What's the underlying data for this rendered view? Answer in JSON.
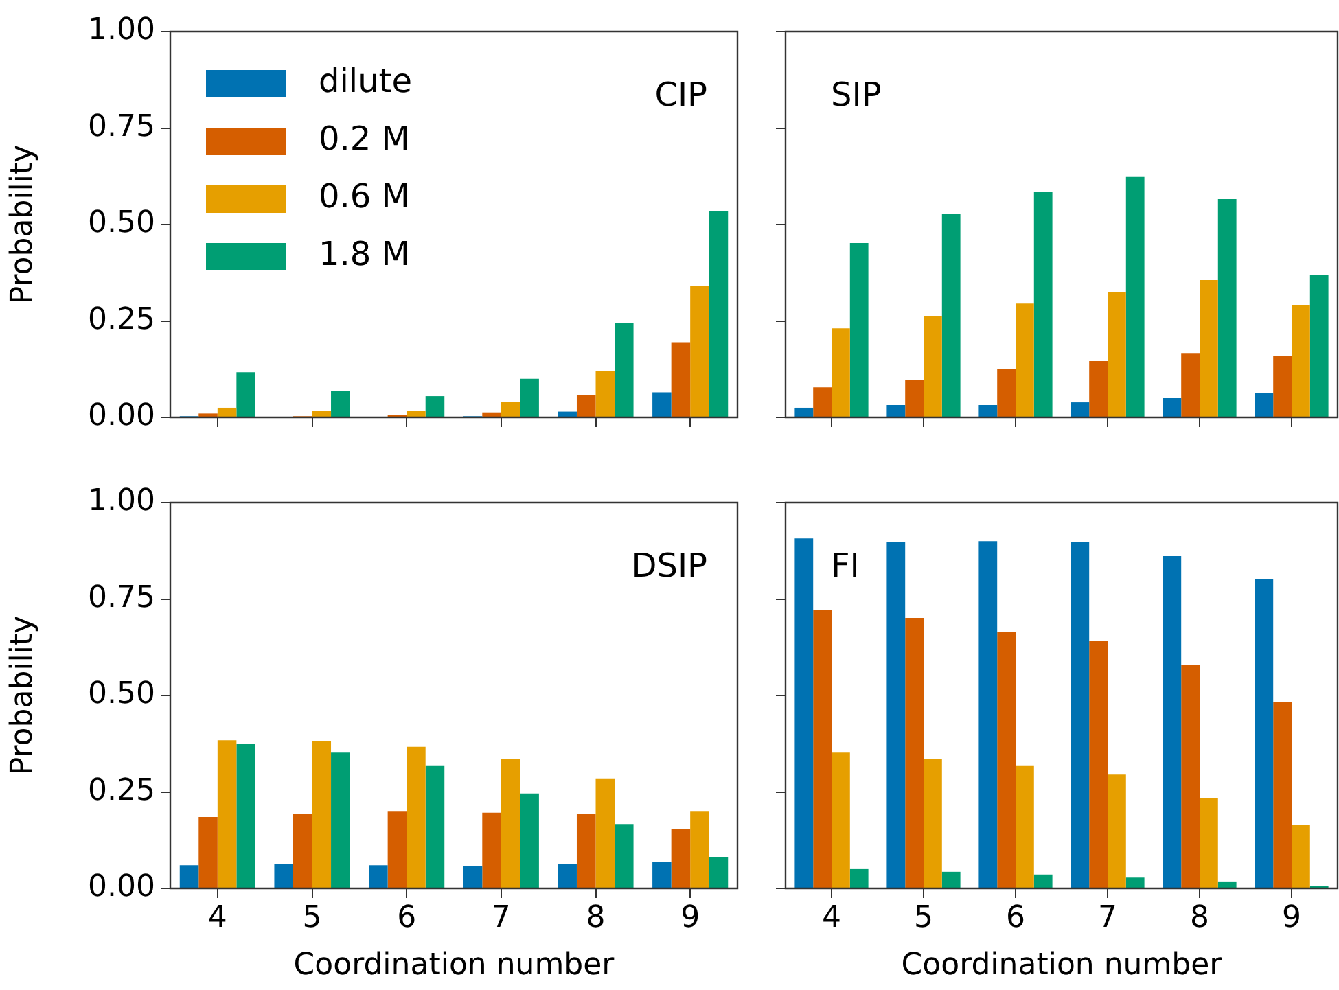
{
  "chart_data": [
    {
      "type": "bar",
      "ylabel": "Probability",
      "annotations": [
        "CIP"
      ],
      "legend": "top left",
      "tick_labels": "y",
      "categories": [
        "4",
        "5",
        "6",
        "7",
        "8",
        "9"
      ],
      "ylim": [
        0,
        1
      ],
      "yticks": [
        {
          "value": 0,
          "label": "0.00"
        },
        {
          "value": 0.25,
          "label": "0.25"
        },
        {
          "value": 0.5,
          "label": "0.50"
        },
        {
          "value": 0.75,
          "label": "0.75"
        },
        {
          "value": 1,
          "label": "1.00"
        }
      ],
      "series": [
        {
          "name": "dilute",
          "color": "#0072b2",
          "values": [
            0.003,
            null,
            0.001,
            0.003,
            0.015,
            0.065
          ]
        },
        {
          "name": "0.2 M",
          "color": "#d55e00",
          "values": [
            0.01,
            0.003,
            0.006,
            0.013,
            0.058,
            0.195
          ]
        },
        {
          "name": "0.6 M",
          "color": "#e69f00",
          "values": [
            0.025,
            0.017,
            0.017,
            0.04,
            0.12,
            0.34
          ]
        },
        {
          "name": "1.8 M",
          "color": "#009e73",
          "values": [
            0.117,
            0.068,
            0.055,
            0.1,
            0.245,
            0.535
          ]
        }
      ]
    },
    {
      "type": "bar",
      "annotations": [
        "SIP"
      ],
      "tick_labels": false,
      "categories": [
        "4",
        "5",
        "6",
        "7",
        "8",
        "9"
      ],
      "ylim": [
        0,
        1
      ],
      "yticks": [
        {
          "value": 0,
          "label": null
        },
        {
          "value": 0.25,
          "label": null
        },
        {
          "value": 0.5,
          "label": null
        },
        {
          "value": 0.75,
          "label": null
        },
        {
          "value": 1,
          "label": null
        }
      ],
      "series": [
        {
          "color": "#0072b2",
          "values": [
            0.025,
            0.032,
            0.032,
            0.039,
            0.05,
            0.064
          ]
        },
        {
          "color": "#d55e00",
          "values": [
            0.078,
            0.096,
            0.125,
            0.146,
            0.167,
            0.16
          ]
        },
        {
          "color": "#e69f00",
          "values": [
            0.231,
            0.263,
            0.295,
            0.324,
            0.356,
            0.292
          ]
        },
        {
          "color": "#009e73",
          "values": [
            0.452,
            0.527,
            0.584,
            0.623,
            0.566,
            0.37
          ]
        }
      ]
    },
    {
      "type": "bar",
      "xlabel": "Coordination number",
      "ylabel": "Probability",
      "annotations": [
        "DSIP"
      ],
      "categories": [
        "4",
        "5",
        "6",
        "7",
        "8",
        "9"
      ],
      "ylim": [
        0,
        1
      ],
      "yticks": [
        {
          "value": 0,
          "label": "0.00"
        },
        {
          "value": 0.25,
          "label": "0.25"
        },
        {
          "value": 0.5,
          "label": "0.50"
        },
        {
          "value": 0.75,
          "label": "0.75"
        },
        {
          "value": 1,
          "label": "1.00"
        }
      ],
      "series": [
        {
          "color": "#0072b2",
          "values": [
            0.06,
            0.064,
            0.06,
            0.057,
            0.064,
            0.068
          ]
        },
        {
          "color": "#d55e00",
          "values": [
            0.185,
            0.192,
            0.199,
            0.196,
            0.192,
            0.153
          ]
        },
        {
          "color": "#e69f00",
          "values": [
            0.384,
            0.381,
            0.367,
            0.335,
            0.285,
            0.199
          ]
        },
        {
          "color": "#009e73",
          "values": [
            0.374,
            0.352,
            0.317,
            0.246,
            0.167,
            0.082
          ]
        }
      ]
    },
    {
      "type": "bar",
      "xlabel": "Coordination number",
      "annotations": [
        "FI"
      ],
      "tick_labels": "x",
      "categories": [
        "4",
        "5",
        "6",
        "7",
        "8",
        "9"
      ],
      "ylim": [
        0,
        1
      ],
      "yticks": [
        {
          "value": 0,
          "label": null
        },
        {
          "value": 0.25,
          "label": null
        },
        {
          "value": 0.5,
          "label": null
        },
        {
          "value": 0.75,
          "label": null
        },
        {
          "value": 1,
          "label": null
        }
      ],
      "series": [
        {
          "color": "#0072b2",
          "values": [
            0.907,
            0.897,
            0.9,
            0.897,
            0.861,
            0.801
          ]
        },
        {
          "color": "#d55e00",
          "values": [
            0.722,
            0.701,
            0.665,
            0.641,
            0.58,
            0.484
          ]
        },
        {
          "color": "#e69f00",
          "values": [
            0.352,
            0.335,
            0.317,
            0.295,
            0.235,
            0.164
          ]
        },
        {
          "color": "#009e73",
          "values": [
            0.05,
            0.043,
            0.036,
            0.028,
            0.018,
            0.007
          ]
        }
      ]
    }
  ]
}
